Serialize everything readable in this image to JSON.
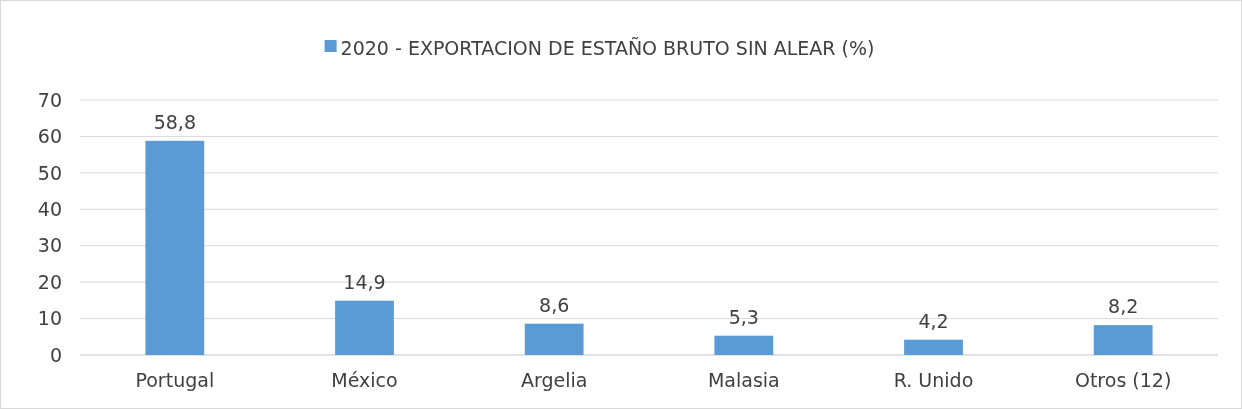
{
  "chart_data": {
    "type": "bar",
    "categories": [
      "Portugal",
      "México",
      "Argelia",
      "Malasia",
      "R. Unido",
      "Otros (12)"
    ],
    "series": [
      {
        "name": "2020 - EXPORTACION DE ESTAÑO BRUTO SIN ALEAR (%)",
        "color": "#5b9bd5",
        "values": [
          58.8,
          14.9,
          8.6,
          5.3,
          4.2,
          8.2
        ],
        "value_labels": [
          "58,8",
          "14,9",
          "8,6",
          "5,3",
          "4,2",
          "8,2"
        ]
      }
    ],
    "ylim": [
      0,
      70
    ],
    "yticks": [
      0,
      10,
      20,
      30,
      40,
      50,
      60,
      70
    ],
    "grid": "y",
    "legend": "top"
  }
}
